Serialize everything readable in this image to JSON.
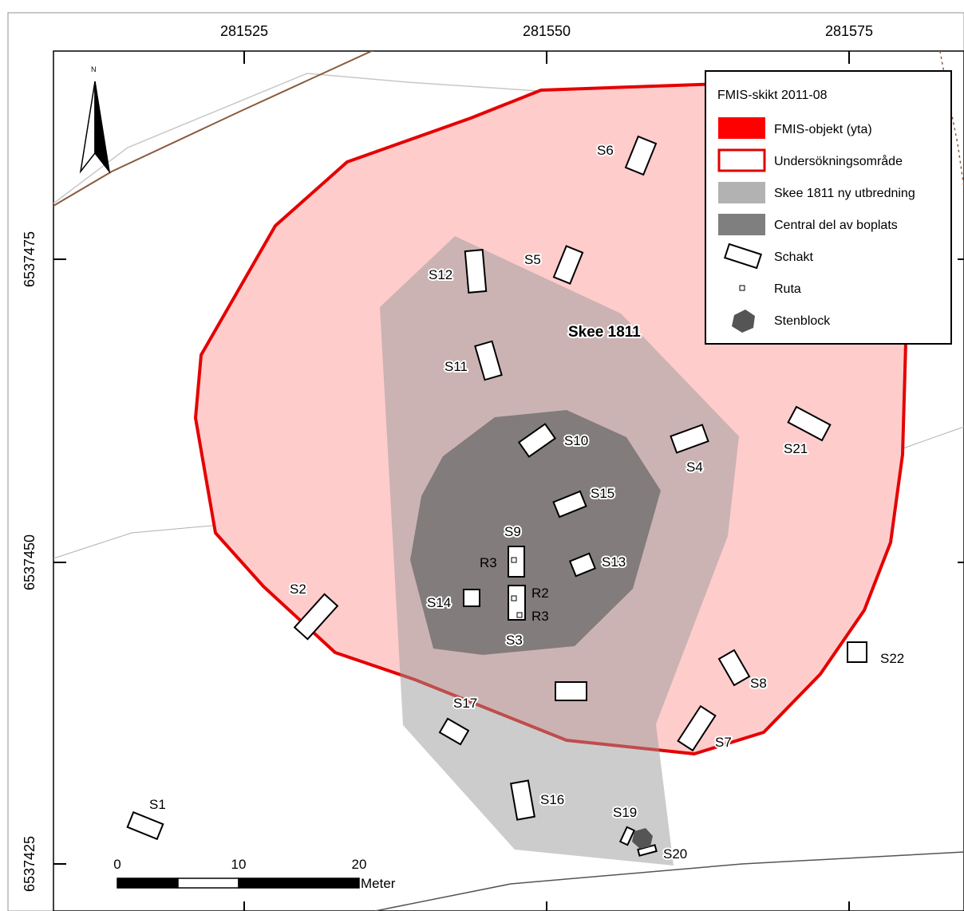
{
  "map": {
    "x_coords": [
      "281525",
      "281550",
      "281575"
    ],
    "y_coords": [
      "6537475",
      "6537450",
      "6537425"
    ],
    "north": "N",
    "site_label": "Skee 1811",
    "trench_labels": [
      "S1",
      "S2",
      "S3",
      "S4",
      "S5",
      "S6",
      "S7",
      "S8",
      "S9",
      "S10",
      "S11",
      "S12",
      "S13",
      "S14",
      "S15",
      "S16",
      "S17",
      "S19",
      "S20",
      "S21",
      "S22"
    ],
    "square_labels": {
      "r3_s9": "R3",
      "r2": "R2",
      "r3_s3": "R3"
    }
  },
  "legend": {
    "title": "FMIS-skikt 2011-08",
    "items": [
      {
        "label": "FMIS-objekt (yta)",
        "color": "#ff0000"
      },
      {
        "label": "Undersökningsområde",
        "color": "#e00000"
      },
      {
        "label": "Skee 1811 ny utbredning",
        "color": "#b2b2b2"
      },
      {
        "label": "Central del av boplats",
        "color": "#7f7f7f"
      },
      {
        "label": "Schakt",
        "color": "#ffffff"
      },
      {
        "label": "Ruta",
        "color": "#ffffff"
      },
      {
        "label": "Stenblock",
        "color": "#555555"
      }
    ]
  },
  "scalebar": {
    "ticks": [
      "0",
      "10",
      "20"
    ],
    "unit": "Meter"
  },
  "colors": {
    "fmis_fill": "#ffcccc",
    "fmis_outline": "#e50000",
    "extent_fill": "#aaaaaa",
    "central_fill": "#747474"
  }
}
